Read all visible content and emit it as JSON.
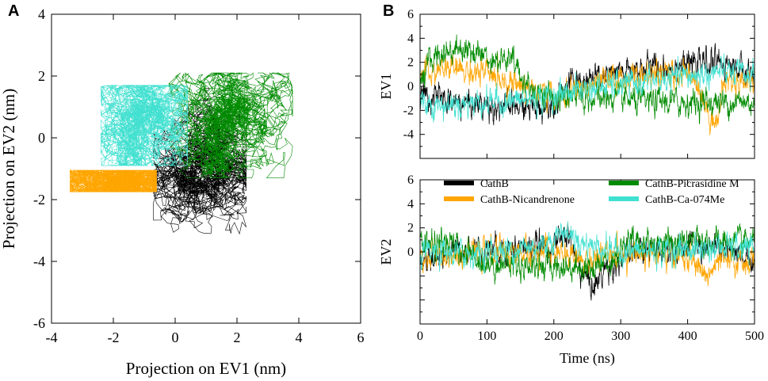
{
  "chart_data": [
    {
      "panel": "A",
      "type": "line",
      "xlabel": "Projection on EV1 (nm)",
      "ylabel": "Projection on EV2 (nm)",
      "xlim": [
        -4,
        6
      ],
      "ylim": [
        -6,
        4
      ],
      "xticks": [
        "-4",
        "-2",
        "0",
        "2",
        "4",
        "6"
      ],
      "yticks": [
        "4",
        "2",
        "0",
        "-2",
        "-4",
        "-6"
      ],
      "series": [
        {
          "name": "CathB",
          "color": "#000000",
          "center": [
            0.8,
            -1.0
          ],
          "spread": [
            1.5,
            2.6
          ]
        },
        {
          "name": "CathB-Nicandrenone",
          "color": "#ffa500",
          "center": [
            -2.0,
            -1.4
          ],
          "spread": [
            1.4,
            0.35
          ]
        },
        {
          "name": "CathB-Picrasidine M",
          "color": "#008b00",
          "center": [
            1.8,
            0.4
          ],
          "spread": [
            2.0,
            1.7
          ]
        },
        {
          "name": "CathB-Ca-074Me",
          "color": "#40e0d0",
          "center": [
            -1.0,
            0.4
          ],
          "spread": [
            1.4,
            1.3
          ]
        }
      ]
    },
    {
      "panel": "B",
      "type": "line",
      "xlabel": "Time (ns)",
      "xlim": [
        0,
        500
      ],
      "xticks": [
        "0",
        "100",
        "200",
        "300",
        "400",
        "500"
      ],
      "subplots": [
        {
          "ylabel": "EV1",
          "ylim": [
            -6,
            6
          ],
          "yticks": [
            "6",
            "4",
            "2",
            "0",
            "-2",
            "-4"
          ],
          "series": [
            {
              "name": "CathB",
              "color": "#000000",
              "keys": [
                [
                  0,
                  -0.5
                ],
                [
                  40,
                  -1.2
                ],
                [
                  100,
                  -1.6
                ],
                [
                  180,
                  -1.8
                ],
                [
                  200,
                  -1.3
                ],
                [
                  220,
                  0.2
                ],
                [
                  280,
                  0.8
                ],
                [
                  330,
                  1.5
                ],
                [
                  400,
                  1.8
                ],
                [
                  450,
                  2.0
                ],
                [
                  500,
                  1.0
                ]
              ]
            },
            {
              "name": "CathB-Nicandrenone",
              "color": "#ffa500",
              "keys": [
                [
                  0,
                  0.8
                ],
                [
                  40,
                  1.5
                ],
                [
                  100,
                  1.0
                ],
                [
                  160,
                  0.0
                ],
                [
                  200,
                  -1.0
                ],
                [
                  260,
                  0.2
                ],
                [
                  320,
                  0.8
                ],
                [
                  410,
                  1.0
                ],
                [
                  430,
                  -2.2
                ],
                [
                  445,
                  -3.0
                ],
                [
                  455,
                  0.5
                ],
                [
                  500,
                  0.5
                ]
              ]
            },
            {
              "name": "CathB-Picrasidine M",
              "color": "#008b00",
              "keys": [
                [
                  0,
                  0.5
                ],
                [
                  20,
                  2.5
                ],
                [
                  60,
                  3.3
                ],
                [
                  100,
                  2.5
                ],
                [
                  140,
                  2.0
                ],
                [
                  160,
                  0.0
                ],
                [
                  200,
                  -1.0
                ],
                [
                  300,
                  -1.0
                ],
                [
                  320,
                  -1.3
                ],
                [
                  400,
                  -1.3
                ],
                [
                  500,
                  -1.3
                ]
              ]
            },
            {
              "name": "CathB-Ca-074Me",
              "color": "#40e0d0",
              "keys": [
                [
                  0,
                  -1.2
                ],
                [
                  30,
                  -1.6
                ],
                [
                  80,
                  -1.3
                ],
                [
                  150,
                  -1.2
                ],
                [
                  200,
                  -0.8
                ],
                [
                  230,
                  -0.3
                ],
                [
                  280,
                  0.0
                ],
                [
                  360,
                  0.5
                ],
                [
                  450,
                  1.2
                ],
                [
                  500,
                  0.9
                ]
              ]
            }
          ]
        },
        {
          "ylabel": "EV2",
          "ylim": [
            -6,
            6
          ],
          "yticks": [
            "6",
            "4",
            "2",
            "0"
          ],
          "series": [
            {
              "name": "CathB",
              "color": "#000000",
              "keys": [
                [
                  0,
                  -0.8
                ],
                [
                  60,
                  0.2
                ],
                [
                  120,
                  0.3
                ],
                [
                  200,
                  0.5
                ],
                [
                  220,
                  1.5
                ],
                [
                  240,
                  -1.5
                ],
                [
                  260,
                  -3.0
                ],
                [
                  275,
                  -1.5
                ],
                [
                  320,
                  0.0
                ],
                [
                  400,
                  0.5
                ],
                [
                  450,
                  0.2
                ],
                [
                  500,
                  -1.0
                ]
              ]
            },
            {
              "name": "CathB-Nicandrenone",
              "color": "#ffa500",
              "keys": [
                [
                  0,
                  -0.5
                ],
                [
                  80,
                  0.0
                ],
                [
                  200,
                  0.0
                ],
                [
                  240,
                  -0.8
                ],
                [
                  320,
                  0.0
                ],
                [
                  400,
                  -0.5
                ],
                [
                  430,
                  -2.0
                ],
                [
                  450,
                  -0.8
                ],
                [
                  500,
                  -0.8
                ]
              ]
            },
            {
              "name": "CathB-Picrasidine M",
              "color": "#008b00",
              "keys": [
                [
                  0,
                  0.8
                ],
                [
                  50,
                  0.5
                ],
                [
                  100,
                  -1.0
                ],
                [
                  200,
                  -1.2
                ],
                [
                  260,
                  -1.3
                ],
                [
                  290,
                  -0.5
                ],
                [
                  310,
                  0.8
                ],
                [
                  400,
                  0.8
                ],
                [
                  500,
                  0.8
                ]
              ]
            },
            {
              "name": "CathB-Ca-074Me",
              "color": "#40e0d0",
              "keys": [
                [
                  0,
                  -0.3
                ],
                [
                  100,
                  0.0
                ],
                [
                  180,
                  0.5
                ],
                [
                  215,
                  1.8
                ],
                [
                  240,
                  0.8
                ],
                [
                  300,
                  0.0
                ],
                [
                  400,
                  0.2
                ],
                [
                  450,
                  0.3
                ],
                [
                  500,
                  0.2
                ]
              ]
            }
          ]
        }
      ],
      "legend": [
        {
          "label": "CathB",
          "color": "#000000"
        },
        {
          "label": "CathB-Nicandrenone",
          "color": "#ffa500"
        },
        {
          "label": "CathB-Picrasidine M",
          "color": "#008b00"
        },
        {
          "label": "CathB-Ca-074Me",
          "color": "#40e0d0"
        }
      ]
    }
  ],
  "labels": {
    "panel_a": "A",
    "panel_b": "B"
  }
}
